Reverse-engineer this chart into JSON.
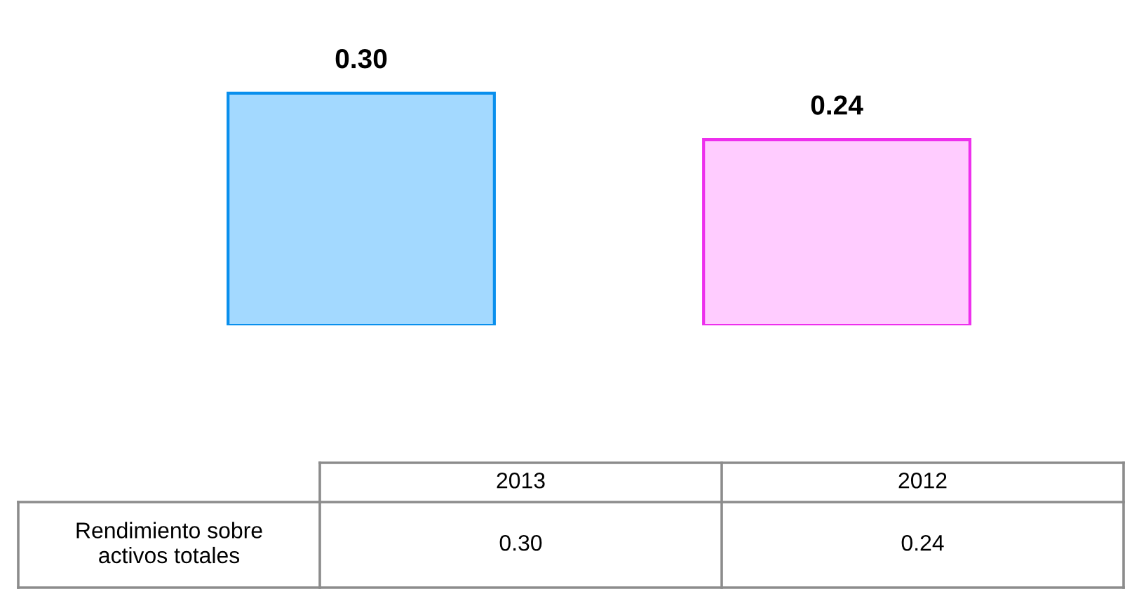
{
  "chart_data": {
    "type": "bar",
    "categories": [
      "2013",
      "2012"
    ],
    "series": [
      {
        "name": "Rendimiento sobre activos totales",
        "colors": [
          "#a3d9ff",
          "#ffccff"
        ],
        "values": [
          0.3,
          0.24
        ],
        "value_labels": [
          "0.30",
          "0.24"
        ]
      }
    ],
    "tick_labels": false,
    "legend": false,
    "grid": false
  }
}
